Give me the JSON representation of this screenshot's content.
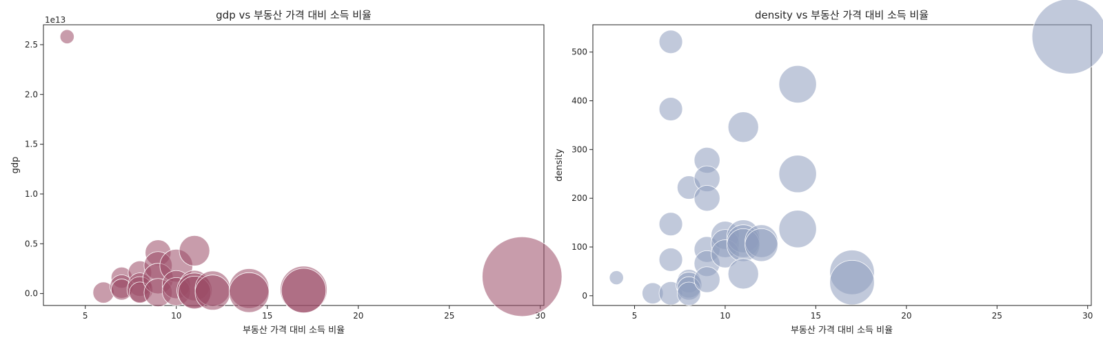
{
  "chart_data": [
    {
      "type": "scatter",
      "title": "gdp vs 부동산 가격 대비 소득 비율",
      "xlabel": "부동산 가격 대비 소득 비율",
      "ylabel": "gdp",
      "offset_label": "1e13",
      "xlim": [
        2.7,
        30.2
      ],
      "ylim": [
        -0.12,
        2.7
      ],
      "xticks": [
        5,
        10,
        15,
        20,
        25,
        30
      ],
      "xtick_labels": [
        "5",
        "10",
        "15",
        "20",
        "25",
        "30"
      ],
      "yticks": [
        0,
        0.5,
        1.0,
        1.5,
        2.0,
        2.5
      ],
      "ytick_labels": [
        "0.0",
        "0.5",
        "1.0",
        "1.5",
        "2.0",
        "2.5"
      ],
      "color": "#9b4b66",
      "series": [
        {
          "points": [
            {
              "x": 4,
              "y": 2.58,
              "s": 0.3
            },
            {
              "x": 6,
              "y": 0.01,
              "s": 0.45
            },
            {
              "x": 7,
              "y": 0.16,
              "s": 0.45
            },
            {
              "x": 7,
              "y": 0.07,
              "s": 0.5
            },
            {
              "x": 7,
              "y": 0.04,
              "s": 0.45
            },
            {
              "x": 8,
              "y": 0.21,
              "s": 0.5
            },
            {
              "x": 8,
              "y": 0.09,
              "s": 0.5
            },
            {
              "x": 8,
              "y": 0.04,
              "s": 0.55
            },
            {
              "x": 8,
              "y": 0.01,
              "s": 0.45
            },
            {
              "x": 9,
              "y": 0.41,
              "s": 0.55
            },
            {
              "x": 9,
              "y": 0.28,
              "s": 0.6
            },
            {
              "x": 9,
              "y": 0.15,
              "s": 0.65
            },
            {
              "x": 9,
              "y": 0.01,
              "s": 0.6
            },
            {
              "x": 10,
              "y": 0.28,
              "s": 0.7
            },
            {
              "x": 10,
              "y": 0.09,
              "s": 0.6
            },
            {
              "x": 10,
              "y": 0.02,
              "s": 0.6
            },
            {
              "x": 11,
              "y": 0.43,
              "s": 0.65
            },
            {
              "x": 11,
              "y": 0.08,
              "s": 0.65
            },
            {
              "x": 11,
              "y": 0.03,
              "s": 0.75
            },
            {
              "x": 11,
              "y": 0.01,
              "s": 0.7
            },
            {
              "x": 12,
              "y": 0.05,
              "s": 0.75
            },
            {
              "x": 12,
              "y": 0.01,
              "s": 0.75
            },
            {
              "x": 14,
              "y": 0.05,
              "s": 0.85
            },
            {
              "x": 14,
              "y": 0.01,
              "s": 0.85
            },
            {
              "x": 17,
              "y": 0.04,
              "s": 1.0
            },
            {
              "x": 17,
              "y": 0.03,
              "s": 0.95
            },
            {
              "x": 29,
              "y": 0.17,
              "s": 1.7
            }
          ]
        }
      ]
    },
    {
      "type": "scatter",
      "title": "density vs 부동산 가격 대비 소득 비율",
      "xlabel": "부동산 가격 대비 소득 비율",
      "ylabel": "density",
      "xlim": [
        2.7,
        30.2
      ],
      "ylim": [
        -20,
        556
      ],
      "xticks": [
        5,
        10,
        15,
        20,
        25,
        30
      ],
      "xtick_labels": [
        "5",
        "10",
        "15",
        "20",
        "25",
        "30"
      ],
      "yticks": [
        0,
        100,
        200,
        300,
        400,
        500
      ],
      "ytick_labels": [
        "0",
        "100",
        "200",
        "300",
        "400",
        "500"
      ],
      "color": "#8e9dbd",
      "series": [
        {
          "points": [
            {
              "x": 4,
              "y": 37,
              "s": 0.3
            },
            {
              "x": 6,
              "y": 5,
              "s": 0.45
            },
            {
              "x": 7,
              "y": 521,
              "s": 0.5
            },
            {
              "x": 7,
              "y": 383,
              "s": 0.5
            },
            {
              "x": 7,
              "y": 147,
              "s": 0.5
            },
            {
              "x": 7,
              "y": 74,
              "s": 0.5
            },
            {
              "x": 7,
              "y": 5,
              "s": 0.5
            },
            {
              "x": 8,
              "y": 222,
              "s": 0.5
            },
            {
              "x": 8,
              "y": 30,
              "s": 0.5
            },
            {
              "x": 8,
              "y": 22,
              "s": 0.55
            },
            {
              "x": 8,
              "y": 15,
              "s": 0.5
            },
            {
              "x": 8,
              "y": 4,
              "s": 0.5
            },
            {
              "x": 9,
              "y": 278,
              "s": 0.55
            },
            {
              "x": 9,
              "y": 240,
              "s": 0.55
            },
            {
              "x": 9,
              "y": 200,
              "s": 0.55
            },
            {
              "x": 9,
              "y": 95,
              "s": 0.55
            },
            {
              "x": 9,
              "y": 66,
              "s": 0.55
            },
            {
              "x": 9,
              "y": 33,
              "s": 0.55
            },
            {
              "x": 10,
              "y": 124,
              "s": 0.6
            },
            {
              "x": 10,
              "y": 107,
              "s": 0.6
            },
            {
              "x": 10,
              "y": 86,
              "s": 0.6
            },
            {
              "x": 11,
              "y": 346,
              "s": 0.65
            },
            {
              "x": 11,
              "y": 122,
              "s": 0.7
            },
            {
              "x": 11,
              "y": 112,
              "s": 0.7
            },
            {
              "x": 11,
              "y": 104,
              "s": 0.7
            },
            {
              "x": 11,
              "y": 45,
              "s": 0.65
            },
            {
              "x": 12,
              "y": 112,
              "s": 0.7
            },
            {
              "x": 12,
              "y": 104,
              "s": 0.7
            },
            {
              "x": 14,
              "y": 434,
              "s": 0.8
            },
            {
              "x": 14,
              "y": 250,
              "s": 0.8
            },
            {
              "x": 14,
              "y": 137,
              "s": 0.8
            },
            {
              "x": 17,
              "y": 48,
              "s": 0.95
            },
            {
              "x": 17,
              "y": 27,
              "s": 0.95
            },
            {
              "x": 29,
              "y": 532,
              "s": 1.6
            }
          ]
        }
      ]
    }
  ]
}
